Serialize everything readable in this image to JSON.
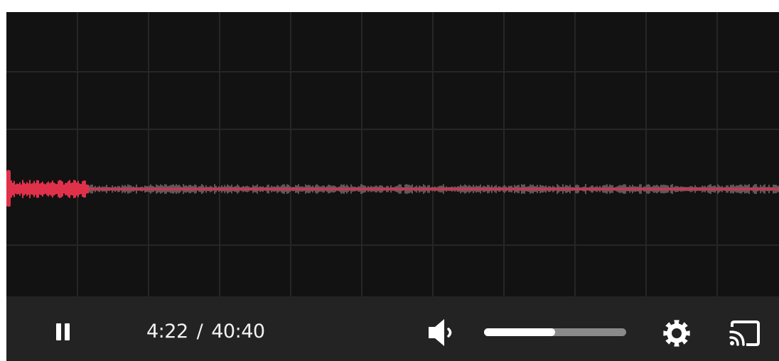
{
  "player": {
    "current_time": "4:22",
    "separator": "/",
    "duration": "40:40",
    "played_fraction": 0.107,
    "volume_level": 0.5,
    "state": "playing"
  },
  "colors": {
    "background": "#121212",
    "grid": "#262626",
    "played_wave": "#e0314b",
    "unplayed_wave": "#5a5a5a",
    "controls_bar": "#232323",
    "icon": "#ffffff"
  },
  "icons": {
    "play_pause": "pause-icon",
    "volume": "volume-low-icon",
    "settings": "gear-icon",
    "cast": "cast-icon"
  }
}
